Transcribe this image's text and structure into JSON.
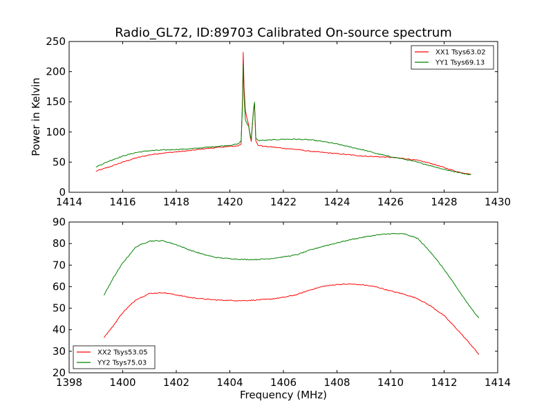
{
  "chart_data": [
    {
      "type": "line",
      "title": "Radio_GL72, ID:89703 Calibrated On-source spectrum",
      "xlabel": "",
      "ylabel": "Power in Kelvin",
      "xlim": [
        1414,
        1430
      ],
      "ylim": [
        0,
        250
      ],
      "xticks": [
        "1414",
        "1416",
        "1418",
        "1420",
        "1422",
        "1424",
        "1426",
        "1428",
        "1430"
      ],
      "yticks": [
        "0",
        "50",
        "100",
        "150",
        "200",
        "250"
      ],
      "grid": false,
      "legend_position": "top-right",
      "series": [
        {
          "name": "XX1 Tsys63.02",
          "color": "#ff0000",
          "x": [
            1415.0,
            1415.5,
            1416.0,
            1416.5,
            1417.0,
            1417.5,
            1418.0,
            1418.5,
            1419.0,
            1419.5,
            1420.0,
            1420.3,
            1420.42,
            1420.47,
            1420.5,
            1420.53,
            1420.58,
            1420.63,
            1420.7,
            1420.76,
            1420.8,
            1420.84,
            1420.88,
            1420.92,
            1420.97,
            1421.05,
            1421.3,
            1421.6,
            1422.0,
            1422.5,
            1423.0,
            1423.5,
            1424.0,
            1424.5,
            1425.0,
            1425.5,
            1426.0,
            1426.5,
            1427.0,
            1427.5,
            1428.0,
            1428.5,
            1429.0
          ],
          "y": [
            35,
            42,
            50,
            57,
            62,
            65,
            67,
            69,
            72,
            74,
            76,
            77,
            80,
            150,
            232,
            175,
            135,
            125,
            112,
            92,
            85,
            110,
            135,
            147,
            85,
            78,
            76,
            75,
            73,
            71,
            68,
            66,
            64,
            62,
            60,
            59,
            58,
            56,
            53,
            48,
            41,
            34,
            30
          ]
        },
        {
          "name": "YY1 Tsys69.13",
          "color": "#008000",
          "x": [
            1415.0,
            1415.5,
            1416.0,
            1416.5,
            1417.0,
            1417.5,
            1418.0,
            1418.5,
            1419.0,
            1419.5,
            1420.0,
            1420.3,
            1420.42,
            1420.47,
            1420.5,
            1420.53,
            1420.58,
            1420.63,
            1420.7,
            1420.76,
            1420.8,
            1420.84,
            1420.88,
            1420.92,
            1420.97,
            1421.05,
            1421.3,
            1421.6,
            1422.0,
            1422.5,
            1423.0,
            1423.5,
            1424.0,
            1424.5,
            1425.0,
            1425.5,
            1426.0,
            1426.5,
            1427.0,
            1427.5,
            1428.0,
            1428.5,
            1429.0
          ],
          "y": [
            42,
            52,
            60,
            66,
            69,
            70,
            71,
            72,
            74,
            76,
            78,
            80,
            85,
            140,
            210,
            160,
            120,
            115,
            110,
            95,
            88,
            112,
            135,
            150,
            90,
            86,
            86,
            87,
            88,
            88,
            87,
            84,
            80,
            75,
            70,
            64,
            59,
            55,
            50,
            44,
            38,
            33,
            29
          ]
        }
      ]
    },
    {
      "type": "line",
      "title": "",
      "xlabel": "Frequency (MHz)",
      "ylabel": "",
      "xlim": [
        1398,
        1414
      ],
      "ylim": [
        20,
        90
      ],
      "xticks": [
        "1398",
        "1400",
        "1402",
        "1404",
        "1406",
        "1408",
        "1410",
        "1412",
        "1414"
      ],
      "yticks": [
        "20",
        "30",
        "40",
        "50",
        "60",
        "70",
        "80",
        "90"
      ],
      "grid": false,
      "legend_position": "bottom-left",
      "series": [
        {
          "name": "XX2 Tsys53.05",
          "color": "#ff0000",
          "x": [
            1399.3,
            1399.6,
            1400.0,
            1400.5,
            1401.0,
            1401.5,
            1402.0,
            1402.5,
            1403.0,
            1403.5,
            1404.0,
            1404.5,
            1405.0,
            1405.5,
            1406.0,
            1406.5,
            1407.0,
            1407.5,
            1408.0,
            1408.5,
            1409.0,
            1409.5,
            1410.0,
            1410.5,
            1411.0,
            1411.5,
            1412.0,
            1412.5,
            1413.0,
            1413.3
          ],
          "y": [
            36.5,
            41,
            48,
            54,
            56.8,
            57.2,
            56.2,
            55,
            54.3,
            53.8,
            53.6,
            53.5,
            53.8,
            54.2,
            55,
            56.3,
            58.5,
            60.2,
            61,
            61.2,
            60.8,
            59.8,
            58,
            56.5,
            54.5,
            51,
            46.5,
            40,
            33,
            28.5
          ]
        },
        {
          "name": "YY2 Tsys75.03",
          "color": "#008000",
          "x": [
            1399.3,
            1399.6,
            1400.0,
            1400.5,
            1401.0,
            1401.5,
            1402.0,
            1402.5,
            1403.0,
            1403.5,
            1404.0,
            1404.5,
            1405.0,
            1405.5,
            1406.0,
            1406.5,
            1407.0,
            1407.5,
            1408.0,
            1408.5,
            1409.0,
            1409.5,
            1410.0,
            1410.5,
            1411.0,
            1411.5,
            1412.0,
            1412.5,
            1413.0,
            1413.3
          ],
          "y": [
            56,
            63,
            71,
            78.5,
            81.2,
            81.3,
            79.5,
            77,
            75,
            73.5,
            73,
            72.6,
            72.6,
            73,
            73.8,
            74.8,
            77,
            78.8,
            80.3,
            81.8,
            83,
            84,
            84.6,
            84.5,
            82.5,
            76,
            68,
            59,
            50,
            45.5
          ]
        }
      ]
    }
  ]
}
